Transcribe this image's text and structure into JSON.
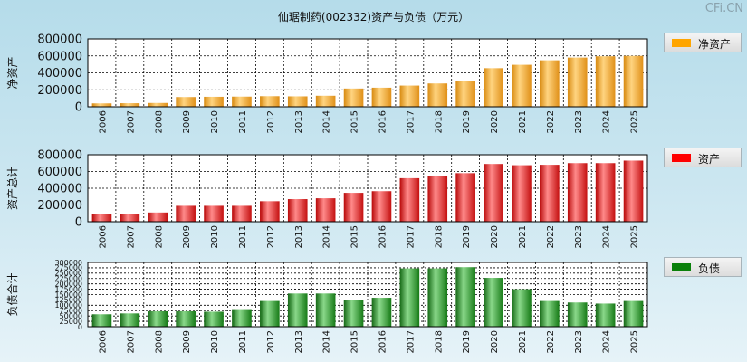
{
  "title": "仙琚制药(002332)资产与负债（万元）",
  "watermark": "CFi.CN",
  "chart_data": [
    {
      "type": "bar",
      "ylabel": "净资产",
      "ylim": [
        0,
        800000
      ],
      "yticks": [
        0,
        200000,
        400000,
        600000,
        800000
      ],
      "legend": "净资产",
      "color": "#f4a623",
      "categories": [
        "2006",
        "2007",
        "2008",
        "2009",
        "2010",
        "2011",
        "2012",
        "2013",
        "2014",
        "2015",
        "2016",
        "2017",
        "2018",
        "2019",
        "2020",
        "2021",
        "2022",
        "2023",
        "2024",
        "2025"
      ],
      "values": [
        40000,
        42000,
        45000,
        115000,
        118000,
        120000,
        125000,
        123000,
        130000,
        215000,
        225000,
        250000,
        275000,
        305000,
        455000,
        495000,
        548000,
        580000,
        595000,
        600000
      ]
    },
    {
      "type": "bar",
      "ylabel": "资产总计",
      "ylim": [
        0,
        800000
      ],
      "yticks": [
        0,
        200000,
        400000,
        600000,
        800000
      ],
      "legend": "资产",
      "color": "#e81010",
      "categories": [
        "2006",
        "2007",
        "2008",
        "2009",
        "2010",
        "2011",
        "2012",
        "2013",
        "2014",
        "2015",
        "2016",
        "2017",
        "2018",
        "2019",
        "2020",
        "2021",
        "2022",
        "2023",
        "2024",
        "2025"
      ],
      "values": [
        90000,
        95000,
        110000,
        190000,
        190000,
        190000,
        245000,
        270000,
        280000,
        345000,
        365000,
        520000,
        550000,
        580000,
        690000,
        675000,
        680000,
        700000,
        700000,
        730000
      ]
    },
    {
      "type": "bar",
      "ylabel": "负债合计",
      "ylim": [
        0,
        300000
      ],
      "yticks": [
        0,
        25000,
        50000,
        75000,
        100000,
        125000,
        150000,
        175000,
        200000,
        225000,
        250000,
        275000,
        300000
      ],
      "legend": "负债",
      "color": "#1a8a1a",
      "categories": [
        "2006",
        "2007",
        "2008",
        "2009",
        "2010",
        "2011",
        "2012",
        "2013",
        "2014",
        "2015",
        "2016",
        "2017",
        "2018",
        "2019",
        "2020",
        "2021",
        "2022",
        "2023",
        "2024",
        "2025"
      ],
      "values": [
        58000,
        62000,
        72000,
        72000,
        70000,
        82000,
        120000,
        155000,
        155000,
        125000,
        135000,
        272000,
        272000,
        278000,
        228000,
        175000,
        120000,
        113000,
        108000,
        120000
      ]
    }
  ]
}
